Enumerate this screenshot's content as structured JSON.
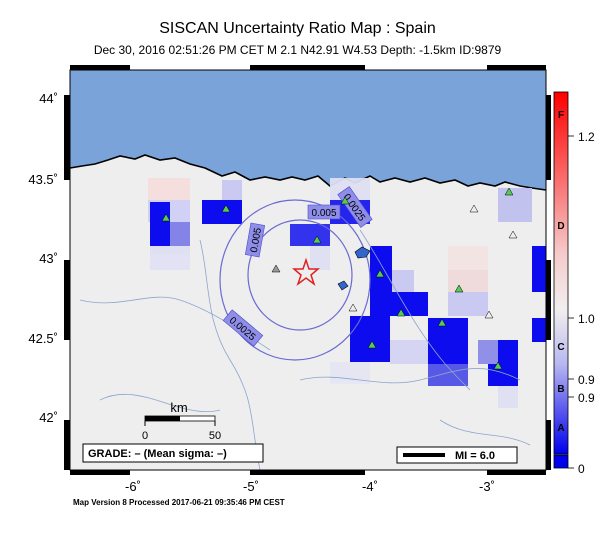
{
  "map": {
    "title": "SISCAN Uncertainty Ratio Map : Spain",
    "subtitle": "Dec 30, 2016 02:51:26 PM CET   M 2.1   N42.91 W4.53   Depth: -1.5km   ID:9879",
    "footer": "Map Version 8 Processed 2017-06-21 09:35:46 PM CEST",
    "lat_labels": [
      "44˚",
      "43.5˚",
      "43˚",
      "42.5˚",
      "42˚"
    ],
    "lon_labels": [
      "-6˚",
      "-5˚",
      "-4˚",
      "-3˚"
    ],
    "contour_labels": [
      "0.005",
      "0.005",
      "0.0025",
      "0.0025"
    ],
    "scale": {
      "title": "km",
      "ticks": [
        "0",
        "50"
      ]
    },
    "grade_box": "GRADE: – (Mean sigma: –)",
    "mi_box": "MI = 6.0",
    "epicenter": {
      "lat": 42.91,
      "lon": -4.53,
      "symbol": "star"
    },
    "colors": {
      "ocean": "#7aa3d9",
      "land": "#eeeeee",
      "stations": "#55cc55",
      "epicenter": "#dd2222",
      "contour": "#6a6ad4"
    }
  },
  "colorbar": {
    "letters": [
      "F",
      "D",
      "C",
      "B",
      "A"
    ],
    "values": [
      "1.2",
      "1.0",
      "0.9",
      "0.9",
      "0"
    ],
    "gradient": [
      "#ff0000",
      "#f8e4e4",
      "#0000ee"
    ]
  }
}
